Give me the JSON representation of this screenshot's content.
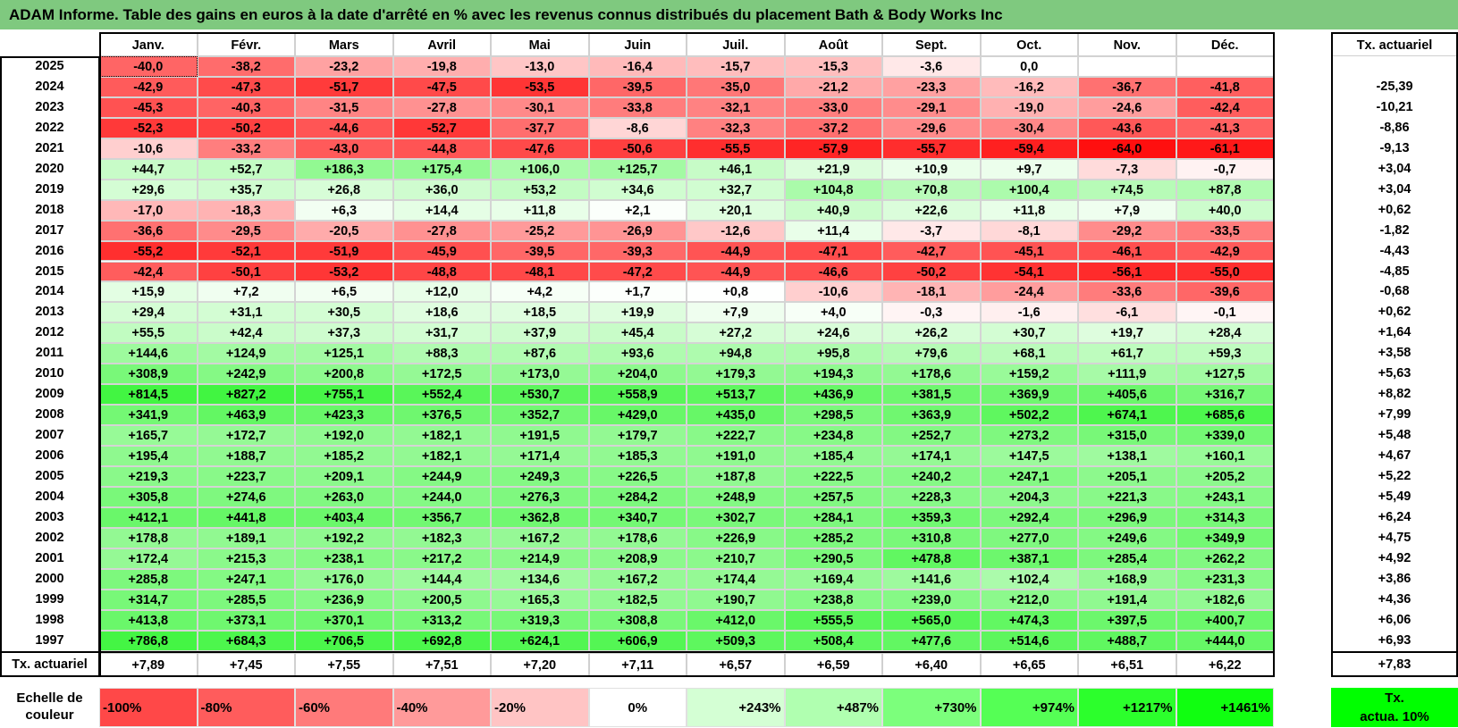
{
  "title": "ADAM Informe. Table des gains en euros à la date d'arrêté en % avec les revenus connus distribués du placement Bath & Body Works Inc",
  "colors": {
    "title_bg": "#7fc97f",
    "negative_max": "#ff1a1a",
    "positive_max": "#33ff33"
  },
  "months": [
    "Janv.",
    "Févr.",
    "Mars",
    "Avril",
    "Mai",
    "Juin",
    "Juil.",
    "Août",
    "Sept.",
    "Oct.",
    "Nov.",
    "Déc."
  ],
  "tx_header": "Tx. actuariel",
  "rows": [
    {
      "year": "2025",
      "values": [
        "-40,0",
        "-38,2",
        "-23,2",
        "-19,8",
        "-13,0",
        "-16,4",
        "-15,7",
        "-15,3",
        "-3,6",
        "0,0",
        "",
        ""
      ],
      "tx": ""
    },
    {
      "year": "2024",
      "values": [
        "-42,9",
        "-47,3",
        "-51,7",
        "-47,5",
        "-53,5",
        "-39,5",
        "-35,0",
        "-21,2",
        "-23,3",
        "-16,2",
        "-36,7",
        "-41,8"
      ],
      "tx": "-25,39"
    },
    {
      "year": "2023",
      "values": [
        "-45,3",
        "-40,3",
        "-31,5",
        "-27,8",
        "-30,1",
        "-33,8",
        "-32,1",
        "-33,0",
        "-29,1",
        "-19,0",
        "-24,6",
        "-42,4"
      ],
      "tx": "-10,21"
    },
    {
      "year": "2022",
      "values": [
        "-52,3",
        "-50,2",
        "-44,6",
        "-52,7",
        "-37,7",
        "-8,6",
        "-32,3",
        "-37,2",
        "-29,6",
        "-30,4",
        "-43,6",
        "-41,3"
      ],
      "tx": "-8,86"
    },
    {
      "year": "2021",
      "values": [
        "-10,6",
        "-33,2",
        "-43,0",
        "-44,8",
        "-47,6",
        "-50,6",
        "-55,5",
        "-57,9",
        "-55,7",
        "-59,4",
        "-64,0",
        "-61,1"
      ],
      "tx": "-9,13"
    },
    {
      "year": "2020",
      "values": [
        "+44,7",
        "+52,7",
        "+186,3",
        "+175,4",
        "+106,0",
        "+125,7",
        "+46,1",
        "+21,9",
        "+10,9",
        "+9,7",
        "-7,3",
        "-0,7"
      ],
      "tx": "+3,04"
    },
    {
      "year": "2019",
      "values": [
        "+29,6",
        "+35,7",
        "+26,8",
        "+36,0",
        "+53,2",
        "+34,6",
        "+32,7",
        "+104,8",
        "+70,8",
        "+100,4",
        "+74,5",
        "+87,8"
      ],
      "tx": "+3,04"
    },
    {
      "year": "2018",
      "values": [
        "-17,0",
        "-18,3",
        "+6,3",
        "+14,4",
        "+11,8",
        "+2,1",
        "+20,1",
        "+40,9",
        "+22,6",
        "+11,8",
        "+7,9",
        "+40,0"
      ],
      "tx": "+0,62"
    },
    {
      "year": "2017",
      "values": [
        "-36,6",
        "-29,5",
        "-20,5",
        "-27,8",
        "-25,2",
        "-26,9",
        "-12,6",
        "+11,4",
        "-3,7",
        "-8,1",
        "-29,2",
        "-33,5"
      ],
      "tx": "-1,82"
    },
    {
      "year": "2016",
      "values": [
        "-55,2",
        "-52,1",
        "-51,9",
        "-45,9",
        "-39,5",
        "-39,3",
        "-44,9",
        "-47,1",
        "-42,7",
        "-45,1",
        "-46,1",
        "-42,9"
      ],
      "tx": "-4,43"
    },
    {
      "year": "2015",
      "values": [
        "-42,4",
        "-50,1",
        "-53,2",
        "-48,8",
        "-48,1",
        "-47,2",
        "-44,9",
        "-46,6",
        "-50,2",
        "-54,1",
        "-56,1",
        "-55,0"
      ],
      "tx": "-4,85"
    },
    {
      "year": "2014",
      "values": [
        "+15,9",
        "+7,2",
        "+6,5",
        "+12,0",
        "+4,2",
        "+1,7",
        "+0,8",
        "-10,6",
        "-18,1",
        "-24,4",
        "-33,6",
        "-39,6"
      ],
      "tx": "-0,68"
    },
    {
      "year": "2013",
      "values": [
        "+29,4",
        "+31,1",
        "+30,5",
        "+18,6",
        "+18,5",
        "+19,9",
        "+7,9",
        "+4,0",
        "-0,3",
        "-1,6",
        "-6,1",
        "-0,1"
      ],
      "tx": "+0,62"
    },
    {
      "year": "2012",
      "values": [
        "+55,5",
        "+42,4",
        "+37,3",
        "+31,7",
        "+37,9",
        "+45,4",
        "+27,2",
        "+24,6",
        "+26,2",
        "+30,7",
        "+19,7",
        "+28,4"
      ],
      "tx": "+1,64"
    },
    {
      "year": "2011",
      "values": [
        "+144,6",
        "+124,9",
        "+125,1",
        "+88,3",
        "+87,6",
        "+93,6",
        "+94,8",
        "+95,8",
        "+79,6",
        "+68,1",
        "+61,7",
        "+59,3"
      ],
      "tx": "+3,58"
    },
    {
      "year": "2010",
      "values": [
        "+308,9",
        "+242,9",
        "+200,8",
        "+172,5",
        "+173,0",
        "+204,0",
        "+179,3",
        "+194,3",
        "+178,6",
        "+159,2",
        "+111,9",
        "+127,5"
      ],
      "tx": "+5,63"
    },
    {
      "year": "2009",
      "values": [
        "+814,5",
        "+827,2",
        "+755,1",
        "+552,4",
        "+530,7",
        "+558,9",
        "+513,7",
        "+436,9",
        "+381,5",
        "+369,9",
        "+405,6",
        "+316,7"
      ],
      "tx": "+8,82"
    },
    {
      "year": "2008",
      "values": [
        "+341,9",
        "+463,9",
        "+423,3",
        "+376,5",
        "+352,7",
        "+429,0",
        "+435,0",
        "+298,5",
        "+363,9",
        "+502,2",
        "+674,1",
        "+685,6"
      ],
      "tx": "+7,99"
    },
    {
      "year": "2007",
      "values": [
        "+165,7",
        "+172,7",
        "+192,0",
        "+182,1",
        "+191,5",
        "+179,7",
        "+222,7",
        "+234,8",
        "+252,7",
        "+273,2",
        "+315,0",
        "+339,0"
      ],
      "tx": "+5,48"
    },
    {
      "year": "2006",
      "values": [
        "+195,4",
        "+188,7",
        "+185,2",
        "+182,1",
        "+171,4",
        "+185,3",
        "+191,0",
        "+185,4",
        "+174,1",
        "+147,5",
        "+138,1",
        "+160,1"
      ],
      "tx": "+4,67"
    },
    {
      "year": "2005",
      "values": [
        "+219,3",
        "+223,7",
        "+209,1",
        "+244,9",
        "+249,3",
        "+226,5",
        "+187,8",
        "+222,5",
        "+240,2",
        "+247,1",
        "+205,1",
        "+205,2"
      ],
      "tx": "+5,22"
    },
    {
      "year": "2004",
      "values": [
        "+305,8",
        "+274,6",
        "+263,0",
        "+244,0",
        "+276,3",
        "+284,2",
        "+248,9",
        "+257,5",
        "+228,3",
        "+204,3",
        "+221,3",
        "+243,1"
      ],
      "tx": "+5,49"
    },
    {
      "year": "2003",
      "values": [
        "+412,1",
        "+441,8",
        "+403,4",
        "+356,7",
        "+362,8",
        "+340,7",
        "+302,7",
        "+284,1",
        "+359,3",
        "+292,4",
        "+296,9",
        "+314,3"
      ],
      "tx": "+6,24"
    },
    {
      "year": "2002",
      "values": [
        "+178,8",
        "+189,1",
        "+192,2",
        "+182,3",
        "+167,2",
        "+178,6",
        "+226,9",
        "+285,2",
        "+310,8",
        "+277,0",
        "+249,6",
        "+349,9"
      ],
      "tx": "+4,75"
    },
    {
      "year": "2001",
      "values": [
        "+172,4",
        "+215,3",
        "+238,1",
        "+217,2",
        "+214,9",
        "+208,9",
        "+210,7",
        "+290,5",
        "+478,8",
        "+387,1",
        "+285,4",
        "+262,2"
      ],
      "tx": "+4,92"
    },
    {
      "year": "2000",
      "values": [
        "+285,8",
        "+247,1",
        "+176,0",
        "+144,4",
        "+134,6",
        "+167,2",
        "+174,4",
        "+169,4",
        "+141,6",
        "+102,4",
        "+168,9",
        "+231,3"
      ],
      "tx": "+3,86"
    },
    {
      "year": "1999",
      "values": [
        "+314,7",
        "+285,5",
        "+236,9",
        "+200,5",
        "+165,3",
        "+182,5",
        "+190,7",
        "+238,8",
        "+239,0",
        "+212,0",
        "+191,4",
        "+182,6"
      ],
      "tx": "+4,36"
    },
    {
      "year": "1998",
      "values": [
        "+413,8",
        "+373,1",
        "+370,1",
        "+313,2",
        "+319,3",
        "+308,8",
        "+412,0",
        "+555,5",
        "+565,0",
        "+474,3",
        "+397,5",
        "+400,7"
      ],
      "tx": "+6,06"
    },
    {
      "year": "1997",
      "values": [
        "+786,8",
        "+684,3",
        "+706,5",
        "+692,8",
        "+624,1",
        "+606,9",
        "+509,3",
        "+508,4",
        "+477,6",
        "+514,6",
        "+488,7",
        "+444,0"
      ],
      "tx": "+6,93"
    }
  ],
  "footer": {
    "label": "Tx. actuariel",
    "values": [
      "+7,89",
      "+7,45",
      "+7,55",
      "+7,51",
      "+7,20",
      "+7,11",
      "+6,57",
      "+6,59",
      "+6,40",
      "+6,65",
      "+6,51",
      "+6,22"
    ],
    "tx": "+7,83"
  },
  "scale": {
    "label_line1": "Echelle de",
    "label_line2": "couleur",
    "items": [
      {
        "label": "-100%",
        "color": "#ff4848"
      },
      {
        "label": "-80%",
        "color": "#ff5c5c"
      },
      {
        "label": "-60%",
        "color": "#ff7a7a"
      },
      {
        "label": "-40%",
        "color": "#ff9a9a"
      },
      {
        "label": "-20%",
        "color": "#ffc4c4"
      },
      {
        "label": "0%",
        "color": "#ffffff"
      },
      {
        "label": "+243%",
        "color": "#d4ffd4"
      },
      {
        "label": "+487%",
        "color": "#b0ffb0"
      },
      {
        "label": "+730%",
        "color": "#7cff7c"
      },
      {
        "label": "+974%",
        "color": "#55ff55"
      },
      {
        "label": "+1217%",
        "color": "#2cff2c"
      },
      {
        "label": "+1461%",
        "color": "#10ff10"
      }
    ],
    "tx_line1": "Tx.",
    "tx_line2": "actua. 10%"
  }
}
